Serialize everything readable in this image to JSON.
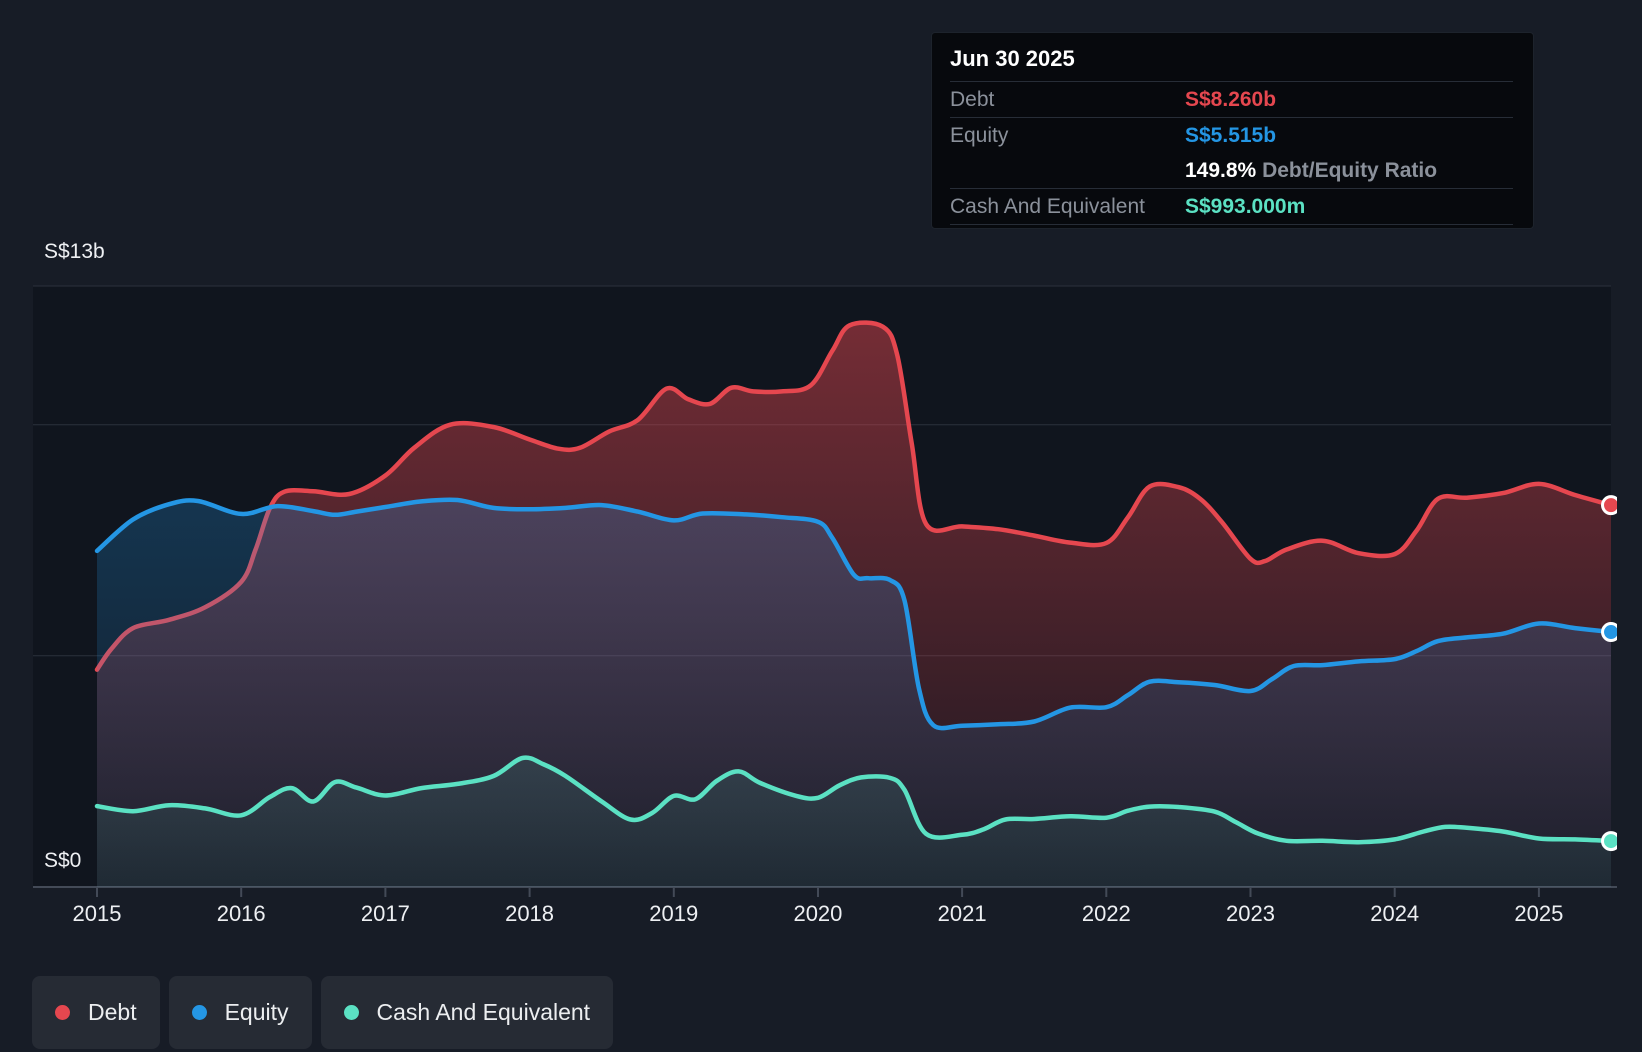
{
  "tooltip": {
    "title": "Jun 30 2025",
    "debt": {
      "label": "Debt",
      "value": "S$8.260b"
    },
    "equity": {
      "label": "Equity",
      "value": "S$5.515b"
    },
    "ratio": {
      "value": "149.8%",
      "label": " Debt/Equity Ratio"
    },
    "cash": {
      "label": "Cash And Equivalent",
      "value": "S$993.000m"
    }
  },
  "axes": {
    "y_top_label": "S$13b",
    "y_bottom_label": "S$0",
    "x_ticks": [
      2015,
      2016,
      2017,
      2018,
      2019,
      2020,
      2021,
      2022,
      2023,
      2024,
      2025
    ]
  },
  "legend": {
    "items": [
      {
        "label": "Debt",
        "color": "#e5474f"
      },
      {
        "label": "Equity",
        "color": "#2496e4"
      },
      {
        "label": "Cash And Equivalent",
        "color": "#5be1c3"
      }
    ]
  },
  "colors": {
    "background": "#171c26",
    "plot_background": "#10151e",
    "gridline": "#2b313c",
    "axis_line": "#434a57",
    "debt": "#e5474f",
    "equity": "#2496e4",
    "cash": "#5be1c3"
  },
  "chart_data": {
    "type": "area",
    "x_domain": [
      2015,
      2025.5
    ],
    "y_domain": [
      0,
      13
    ],
    "y_unit": "S$ billions",
    "y_gridline_values": [
      13,
      10,
      5,
      0
    ],
    "legend_position": "bottom-left",
    "series": [
      {
        "name": "Debt",
        "color": "#e5474f",
        "fill_opacity": [
          0.5,
          0.05
        ],
        "points": [
          [
            2015.0,
            4.7
          ],
          [
            2015.1,
            5.15
          ],
          [
            2015.25,
            5.6
          ],
          [
            2015.5,
            5.78
          ],
          [
            2015.75,
            6.05
          ],
          [
            2016.0,
            6.6
          ],
          [
            2016.1,
            7.3
          ],
          [
            2016.2,
            8.2
          ],
          [
            2016.3,
            8.55
          ],
          [
            2016.5,
            8.56
          ],
          [
            2016.75,
            8.5
          ],
          [
            2017.0,
            8.9
          ],
          [
            2017.2,
            9.5
          ],
          [
            2017.45,
            10.0
          ],
          [
            2017.75,
            9.95
          ],
          [
            2018.0,
            9.68
          ],
          [
            2018.2,
            9.48
          ],
          [
            2018.35,
            9.5
          ],
          [
            2018.55,
            9.85
          ],
          [
            2018.75,
            10.1
          ],
          [
            2018.95,
            10.78
          ],
          [
            2019.1,
            10.55
          ],
          [
            2019.25,
            10.45
          ],
          [
            2019.4,
            10.8
          ],
          [
            2019.55,
            10.72
          ],
          [
            2019.75,
            10.72
          ],
          [
            2019.95,
            10.85
          ],
          [
            2020.1,
            11.6
          ],
          [
            2020.22,
            12.15
          ],
          [
            2020.45,
            12.12
          ],
          [
            2020.55,
            11.5
          ],
          [
            2020.65,
            9.6
          ],
          [
            2020.75,
            7.85
          ],
          [
            2021.0,
            7.8
          ],
          [
            2021.25,
            7.74
          ],
          [
            2021.5,
            7.6
          ],
          [
            2021.75,
            7.45
          ],
          [
            2022.0,
            7.44
          ],
          [
            2022.15,
            8.0
          ],
          [
            2022.3,
            8.66
          ],
          [
            2022.5,
            8.65
          ],
          [
            2022.65,
            8.4
          ],
          [
            2022.8,
            7.9
          ],
          [
            2023.0,
            7.1
          ],
          [
            2023.1,
            7.05
          ],
          [
            2023.25,
            7.3
          ],
          [
            2023.5,
            7.49
          ],
          [
            2023.75,
            7.22
          ],
          [
            2024.0,
            7.2
          ],
          [
            2024.15,
            7.7
          ],
          [
            2024.3,
            8.4
          ],
          [
            2024.5,
            8.42
          ],
          [
            2024.75,
            8.52
          ],
          [
            2025.0,
            8.72
          ],
          [
            2025.25,
            8.48
          ],
          [
            2025.5,
            8.26
          ]
        ]
      },
      {
        "name": "Equity",
        "color": "#2496e4",
        "fill_opacity": [
          0.36,
          0.05
        ],
        "points": [
          [
            2015.0,
            7.27
          ],
          [
            2015.25,
            7.95
          ],
          [
            2015.5,
            8.28
          ],
          [
            2015.7,
            8.35
          ],
          [
            2016.0,
            8.07
          ],
          [
            2016.25,
            8.24
          ],
          [
            2016.5,
            8.13
          ],
          [
            2016.65,
            8.05
          ],
          [
            2016.8,
            8.12
          ],
          [
            2017.0,
            8.22
          ],
          [
            2017.25,
            8.34
          ],
          [
            2017.5,
            8.37
          ],
          [
            2017.75,
            8.2
          ],
          [
            2018.0,
            8.17
          ],
          [
            2018.25,
            8.2
          ],
          [
            2018.5,
            8.26
          ],
          [
            2018.75,
            8.12
          ],
          [
            2019.0,
            7.93
          ],
          [
            2019.2,
            8.08
          ],
          [
            2019.5,
            8.06
          ],
          [
            2019.75,
            8.0
          ],
          [
            2020.0,
            7.9
          ],
          [
            2020.1,
            7.55
          ],
          [
            2020.25,
            6.75
          ],
          [
            2020.35,
            6.68
          ],
          [
            2020.5,
            6.64
          ],
          [
            2020.6,
            6.2
          ],
          [
            2020.7,
            4.3
          ],
          [
            2020.8,
            3.5
          ],
          [
            2021.0,
            3.49
          ],
          [
            2021.25,
            3.52
          ],
          [
            2021.5,
            3.58
          ],
          [
            2021.75,
            3.88
          ],
          [
            2022.0,
            3.89
          ],
          [
            2022.15,
            4.15
          ],
          [
            2022.3,
            4.44
          ],
          [
            2022.5,
            4.43
          ],
          [
            2022.75,
            4.37
          ],
          [
            2023.0,
            4.24
          ],
          [
            2023.15,
            4.5
          ],
          [
            2023.3,
            4.78
          ],
          [
            2023.5,
            4.8
          ],
          [
            2023.75,
            4.88
          ],
          [
            2024.0,
            4.93
          ],
          [
            2024.15,
            5.1
          ],
          [
            2024.3,
            5.32
          ],
          [
            2024.5,
            5.4
          ],
          [
            2024.75,
            5.48
          ],
          [
            2025.0,
            5.7
          ],
          [
            2025.25,
            5.6
          ],
          [
            2025.5,
            5.515
          ]
        ]
      },
      {
        "name": "Cash And Equivalent",
        "color": "#5be1c3",
        "fill_opacity": [
          0.32,
          0.06
        ],
        "points": [
          [
            2015.0,
            1.75
          ],
          [
            2015.25,
            1.64
          ],
          [
            2015.5,
            1.77
          ],
          [
            2015.75,
            1.7
          ],
          [
            2016.0,
            1.55
          ],
          [
            2016.2,
            1.95
          ],
          [
            2016.35,
            2.14
          ],
          [
            2016.5,
            1.85
          ],
          [
            2016.65,
            2.27
          ],
          [
            2016.8,
            2.15
          ],
          [
            2017.0,
            1.98
          ],
          [
            2017.25,
            2.14
          ],
          [
            2017.5,
            2.23
          ],
          [
            2017.75,
            2.4
          ],
          [
            2017.95,
            2.79
          ],
          [
            2018.1,
            2.65
          ],
          [
            2018.25,
            2.4
          ],
          [
            2018.5,
            1.85
          ],
          [
            2018.7,
            1.46
          ],
          [
            2018.85,
            1.6
          ],
          [
            2019.0,
            1.97
          ],
          [
            2019.15,
            1.9
          ],
          [
            2019.3,
            2.3
          ],
          [
            2019.45,
            2.5
          ],
          [
            2019.6,
            2.25
          ],
          [
            2019.85,
            1.97
          ],
          [
            2020.0,
            1.93
          ],
          [
            2020.15,
            2.2
          ],
          [
            2020.3,
            2.37
          ],
          [
            2020.5,
            2.36
          ],
          [
            2020.6,
            2.1
          ],
          [
            2020.75,
            1.15
          ],
          [
            2021.0,
            1.13
          ],
          [
            2021.15,
            1.25
          ],
          [
            2021.3,
            1.46
          ],
          [
            2021.5,
            1.47
          ],
          [
            2021.75,
            1.53
          ],
          [
            2022.0,
            1.5
          ],
          [
            2022.15,
            1.65
          ],
          [
            2022.3,
            1.74
          ],
          [
            2022.5,
            1.73
          ],
          [
            2022.75,
            1.63
          ],
          [
            2022.9,
            1.4
          ],
          [
            2023.05,
            1.16
          ],
          [
            2023.25,
            1.0
          ],
          [
            2023.5,
            1.0
          ],
          [
            2023.75,
            0.97
          ],
          [
            2024.0,
            1.03
          ],
          [
            2024.2,
            1.2
          ],
          [
            2024.35,
            1.3
          ],
          [
            2024.5,
            1.28
          ],
          [
            2024.75,
            1.2
          ],
          [
            2025.0,
            1.05
          ],
          [
            2025.25,
            1.03
          ],
          [
            2025.5,
            0.993
          ]
        ]
      }
    ]
  }
}
